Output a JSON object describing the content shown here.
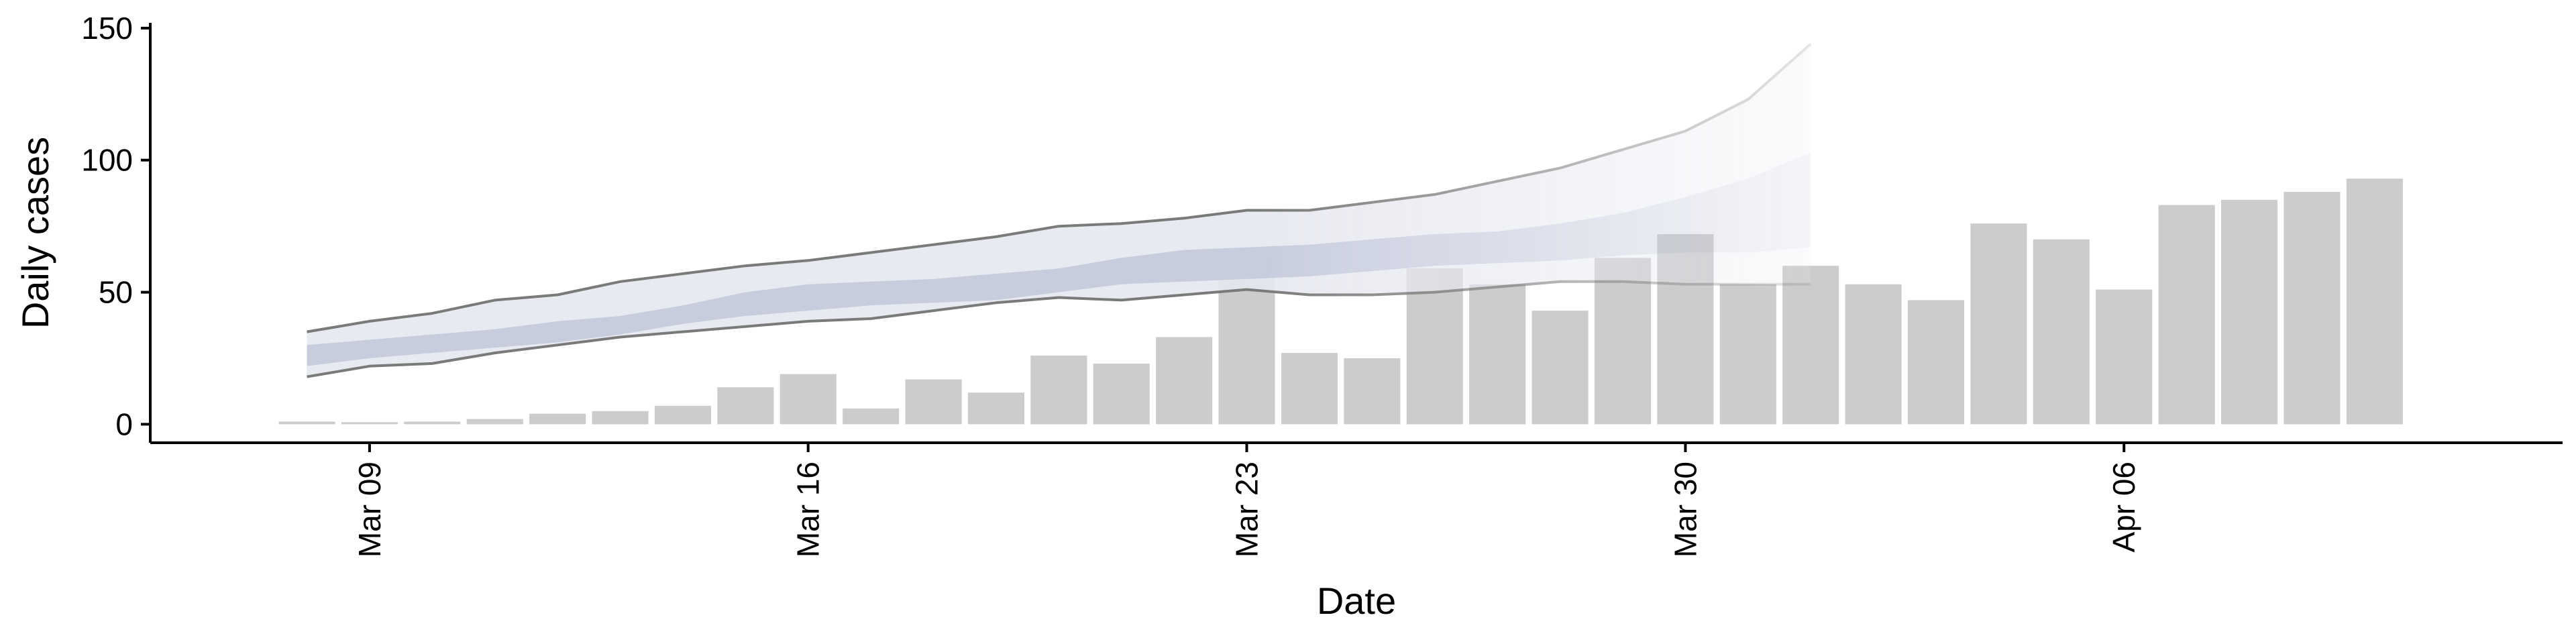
{
  "chart_data": {
    "type": "bar",
    "xlabel": "Date",
    "ylabel": "Daily cases",
    "ylim": [
      -7,
      152
    ],
    "xlim": [
      "2020-03-05T12:00",
      "2020-04-13T00:00"
    ],
    "yticks": [
      0,
      50,
      100,
      150
    ],
    "xticks": [
      {
        "date": "2020-03-09",
        "label": "Mar 09"
      },
      {
        "date": "2020-03-16",
        "label": "Mar 16"
      },
      {
        "date": "2020-03-23",
        "label": "Mar 23"
      },
      {
        "date": "2020-03-30",
        "label": "Mar 30"
      },
      {
        "date": "2020-04-06",
        "label": "Apr 06"
      }
    ],
    "grid": false,
    "bars": {
      "name": "",
      "color": "#cccccc",
      "dates": [
        "2020-03-08",
        "2020-03-09",
        "2020-03-10",
        "2020-03-11",
        "2020-03-12",
        "2020-03-13",
        "2020-03-14",
        "2020-03-15",
        "2020-03-16",
        "2020-03-17",
        "2020-03-18",
        "2020-03-19",
        "2020-03-20",
        "2020-03-21",
        "2020-03-22",
        "2020-03-23",
        "2020-03-24",
        "2020-03-25",
        "2020-03-26",
        "2020-03-27",
        "2020-03-28",
        "2020-03-29",
        "2020-03-30",
        "2020-03-31",
        "2020-04-01",
        "2020-04-02",
        "2020-04-03",
        "2020-04-04",
        "2020-04-05",
        "2020-04-06",
        "2020-04-07",
        "2020-04-08",
        "2020-04-09",
        "2020-04-10"
      ],
      "values": [
        1,
        0,
        1,
        2,
        4,
        5,
        7,
        14,
        19,
        6,
        17,
        12,
        26,
        23,
        33,
        64,
        27,
        25,
        59,
        53,
        43,
        63,
        72,
        53,
        60,
        53,
        47,
        76,
        70,
        51,
        83,
        85,
        88,
        93
      ]
    },
    "forecast": {
      "dates": [
        "2020-03-08",
        "2020-03-09",
        "2020-03-10",
        "2020-03-11",
        "2020-03-12",
        "2020-03-13",
        "2020-03-14",
        "2020-03-15",
        "2020-03-16",
        "2020-03-17",
        "2020-03-18",
        "2020-03-19",
        "2020-03-20",
        "2020-03-21",
        "2020-03-22",
        "2020-03-23",
        "2020-03-24",
        "2020-03-25",
        "2020-03-26",
        "2020-03-27",
        "2020-03-28",
        "2020-03-29",
        "2020-03-30",
        "2020-03-31",
        "2020-04-01"
      ],
      "lower_90": [
        18,
        22,
        23,
        27,
        30,
        33,
        35,
        37,
        39,
        40,
        43,
        46,
        48,
        47,
        49,
        51,
        49,
        49,
        50,
        52,
        54,
        54,
        53,
        53,
        53
      ],
      "upper_90": [
        35,
        39,
        42,
        47,
        49,
        54,
        57,
        60,
        62,
        65,
        68,
        71,
        75,
        76,
        78,
        81,
        81,
        84,
        87,
        92,
        97,
        104,
        111,
        123,
        144
      ],
      "lower_50": [
        22,
        25,
        27,
        29,
        31,
        34,
        38,
        41,
        43,
        45,
        46,
        47,
        50,
        53,
        54,
        55,
        56,
        58,
        60,
        61,
        62,
        64,
        65,
        65,
        67
      ],
      "upper_50": [
        30,
        32,
        34,
        36,
        39,
        41,
        45,
        50,
        53,
        54,
        55,
        57,
        59,
        63,
        66,
        67,
        68,
        70,
        72,
        73,
        76,
        80,
        86,
        93,
        103
      ],
      "color_outer": "#e6e8ef",
      "color_inner": "#c4cadd",
      "color_lines": "#7a7a7a"
    },
    "colors": {
      "axis": "#000000",
      "background": "#ffffff"
    }
  }
}
